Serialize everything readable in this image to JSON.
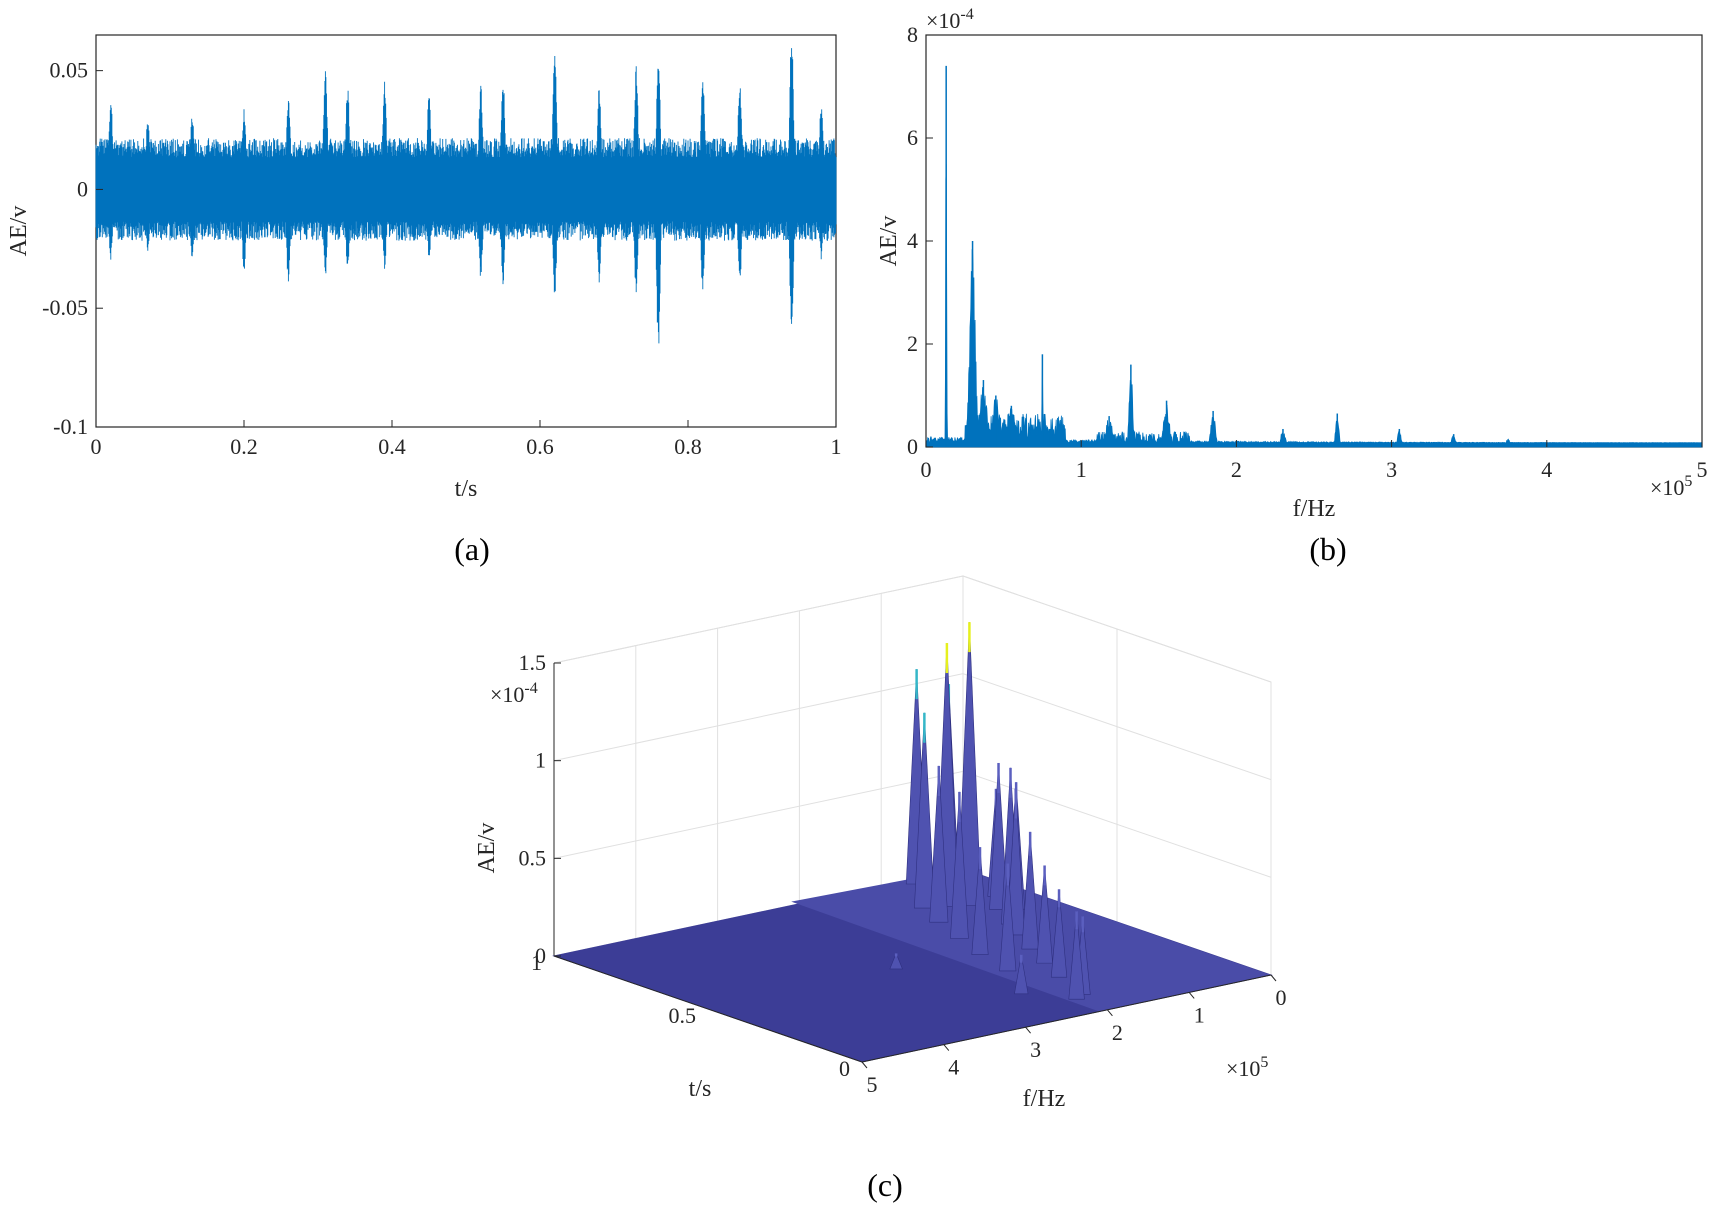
{
  "colors": {
    "signal": "#0072bd",
    "axis": "#262626",
    "grid": "#e0e0e0",
    "surface_base": "#3c3d96",
    "surface_high": "#e6f01e",
    "surface_mid": "#35b7c8"
  },
  "chart_data": [
    {
      "id": "a",
      "type": "line",
      "caption": "(a)",
      "xlabel": "t/s",
      "ylabel": "AE/v",
      "xlim": [
        0,
        1
      ],
      "ylim": [
        -0.1,
        0.065
      ],
      "xticks": [
        "0",
        "0.2",
        "0.4",
        "0.6",
        "0.8",
        "1"
      ],
      "xtick_values": [
        0,
        0.2,
        0.4,
        0.6,
        0.8,
        1
      ],
      "yticks": [
        "0.05",
        "0",
        "-0.05",
        "-0.1"
      ],
      "ytick_values": [
        0.05,
        0,
        -0.05,
        -0.1
      ],
      "noise_amplitude": 0.018,
      "bursts": [
        {
          "t": 0.02,
          "pos": 0.038,
          "neg": -0.03
        },
        {
          "t": 0.07,
          "pos": 0.03,
          "neg": -0.028
        },
        {
          "t": 0.13,
          "pos": 0.032,
          "neg": -0.03
        },
        {
          "t": 0.2,
          "pos": 0.034,
          "neg": -0.036
        },
        {
          "t": 0.26,
          "pos": 0.04,
          "neg": -0.04
        },
        {
          "t": 0.31,
          "pos": 0.052,
          "neg": -0.038
        },
        {
          "t": 0.34,
          "pos": 0.044,
          "neg": -0.036
        },
        {
          "t": 0.39,
          "pos": 0.046,
          "neg": -0.034
        },
        {
          "t": 0.45,
          "pos": 0.04,
          "neg": -0.03
        },
        {
          "t": 0.52,
          "pos": 0.044,
          "neg": -0.038
        },
        {
          "t": 0.55,
          "pos": 0.048,
          "neg": -0.04
        },
        {
          "t": 0.62,
          "pos": 0.062,
          "neg": -0.046
        },
        {
          "t": 0.68,
          "pos": 0.044,
          "neg": -0.04
        },
        {
          "t": 0.73,
          "pos": 0.052,
          "neg": -0.046
        },
        {
          "t": 0.76,
          "pos": 0.056,
          "neg": -0.068
        },
        {
          "t": 0.82,
          "pos": 0.048,
          "neg": -0.044
        },
        {
          "t": 0.87,
          "pos": 0.046,
          "neg": -0.04
        },
        {
          "t": 0.94,
          "pos": 0.066,
          "neg": -0.062
        },
        {
          "t": 0.98,
          "pos": 0.036,
          "neg": -0.03
        }
      ]
    },
    {
      "id": "b",
      "type": "area",
      "caption": "(b)",
      "xlabel": "f/Hz",
      "ylabel": "AE/v",
      "xlim": [
        0,
        5
      ],
      "x_multiplier_base": "×10",
      "x_multiplier_exp": "5",
      "ylim": [
        0,
        8
      ],
      "y_multiplier_base": "×10",
      "y_multiplier_exp": "-4",
      "xticks": [
        "0",
        "1",
        "2",
        "3",
        "4",
        "5"
      ],
      "xtick_values": [
        0,
        1,
        2,
        3,
        4,
        5
      ],
      "yticks": [
        "0",
        "2",
        "4",
        "6",
        "8"
      ],
      "ytick_values": [
        0,
        2,
        4,
        6,
        8
      ],
      "peaks": [
        {
          "f": 0.13,
          "amp": 7.4,
          "w": 0.004
        },
        {
          "f": 0.3,
          "amp": 4.0,
          "w": 0.025
        },
        {
          "f": 0.37,
          "amp": 1.3,
          "w": 0.03
        },
        {
          "f": 0.45,
          "amp": 1.0,
          "w": 0.03
        },
        {
          "f": 0.55,
          "amp": 0.8,
          "w": 0.04
        },
        {
          "f": 0.75,
          "amp": 1.8,
          "w": 0.004
        },
        {
          "f": 0.8,
          "amp": 0.35,
          "w": 0.05
        },
        {
          "f": 1.18,
          "amp": 0.6,
          "w": 0.03
        },
        {
          "f": 1.32,
          "amp": 1.6,
          "w": 0.015
        },
        {
          "f": 1.55,
          "amp": 0.9,
          "w": 0.025
        },
        {
          "f": 1.85,
          "amp": 0.7,
          "w": 0.02
        },
        {
          "f": 2.3,
          "amp": 0.35,
          "w": 0.02
        },
        {
          "f": 2.65,
          "amp": 0.65,
          "w": 0.015
        },
        {
          "f": 3.05,
          "amp": 0.35,
          "w": 0.015
        },
        {
          "f": 3.4,
          "amp": 0.25,
          "w": 0.02
        },
        {
          "f": 3.75,
          "amp": 0.15,
          "w": 0.02
        }
      ]
    },
    {
      "id": "c",
      "type": "surface",
      "caption": "(c)",
      "xlabel": "f/Hz",
      "ylabel": "t/s",
      "zlabel": "AE/v",
      "flim": [
        0,
        5
      ],
      "f_multiplier_base": "×10",
      "f_multiplier_exp": "5",
      "tlim": [
        0,
        1
      ],
      "zlim": [
        0,
        1.5
      ],
      "z_multiplier_base": "×10",
      "z_multiplier_exp": "-4",
      "fticks": [
        "0",
        "1",
        "2",
        "3",
        "4",
        "5"
      ],
      "ftick_values": [
        0,
        1,
        2,
        3,
        4,
        5
      ],
      "tticks": [
        "0",
        "0.5",
        "1"
      ],
      "ttick_values": [
        0,
        0.5,
        1
      ],
      "zticks": [
        "0",
        "0.5",
        "1",
        "1.5"
      ],
      "ztick_values": [
        0,
        0.5,
        1,
        1.5
      ],
      "peaks": [
        {
          "f": 0.05,
          "t": 0.97,
          "amp": 0.42
        },
        {
          "f": 0.1,
          "t": 0.97,
          "amp": 0.32
        },
        {
          "f": 0.3,
          "t": 0.97,
          "amp": 0.85
        },
        {
          "f": 0.35,
          "t": 0.8,
          "amp": 0.55
        },
        {
          "f": 0.4,
          "t": 0.95,
          "amp": 0.95
        },
        {
          "f": 0.48,
          "t": 0.7,
          "amp": 0.65
        },
        {
          "f": 0.55,
          "t": 0.9,
          "amp": 1.05
        },
        {
          "f": 0.62,
          "t": 0.72,
          "amp": 0.75
        },
        {
          "f": 0.68,
          "t": 0.97,
          "amp": 1.1
        },
        {
          "f": 0.75,
          "t": 0.78,
          "amp": 1.45
        },
        {
          "f": 0.85,
          "t": 0.62,
          "amp": 0.8
        },
        {
          "f": 0.95,
          "t": 0.8,
          "amp": 1.35
        },
        {
          "f": 1.05,
          "t": 0.55,
          "amp": 0.75
        },
        {
          "f": 1.15,
          "t": 0.82,
          "amp": 1.0
        },
        {
          "f": 1.25,
          "t": 0.45,
          "amp": 0.6
        },
        {
          "f": 1.35,
          "t": 0.72,
          "amp": 0.8
        },
        {
          "f": 1.45,
          "t": 0.35,
          "amp": 0.5
        },
        {
          "f": 1.55,
          "t": 0.6,
          "amp": 0.75
        },
        {
          "f": 1.65,
          "t": 0.25,
          "amp": 0.45
        },
        {
          "f": 1.75,
          "t": 0.48,
          "amp": 0.55
        },
        {
          "f": 1.85,
          "t": 0.12,
          "amp": 0.4
        },
        {
          "f": 1.9,
          "t": 0.35,
          "amp": 0.55
        },
        {
          "f": 2.0,
          "t": 0.1,
          "amp": 0.45
        },
        {
          "f": 2.3,
          "t": 0.2,
          "amp": 0.2
        },
        {
          "f": 2.7,
          "t": 0.5,
          "amp": 0.08
        }
      ]
    }
  ]
}
